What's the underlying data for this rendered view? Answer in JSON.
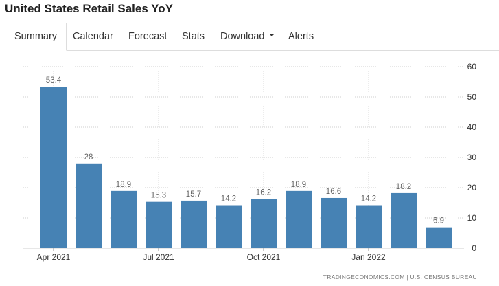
{
  "page": {
    "title": "United States Retail Sales YoY"
  },
  "tabs": [
    {
      "label": "Summary",
      "active": true
    },
    {
      "label": "Calendar"
    },
    {
      "label": "Forecast"
    },
    {
      "label": "Stats"
    },
    {
      "label": "Download",
      "has_dropdown": true
    },
    {
      "label": "Alerts"
    }
  ],
  "chart_data": {
    "type": "bar",
    "categories": [
      "Apr 2021",
      "May 2021",
      "Jun 2021",
      "Jul 2021",
      "Aug 2021",
      "Sep 2021",
      "Oct 2021",
      "Nov 2021",
      "Dec 2021",
      "Jan 2022",
      "Feb 2022",
      "Mar 2022"
    ],
    "values": [
      53.4,
      28,
      18.9,
      15.3,
      15.7,
      14.2,
      16.2,
      18.9,
      16.6,
      14.2,
      18.2,
      6.9
    ],
    "data_labels": [
      "53.4",
      "28",
      "18.9",
      "15.3",
      "15.7",
      "14.2",
      "16.2",
      "18.9",
      "16.6",
      "14.2",
      "18.2",
      "6.9"
    ],
    "x_tick_labels": [
      "Apr 2021",
      "Jul 2021",
      "Oct 2021",
      "Jan 2022"
    ],
    "x_tick_indices": [
      0,
      3,
      6,
      9
    ],
    "y_ticks": [
      0,
      10,
      20,
      30,
      40,
      50,
      60
    ],
    "ylim": [
      0,
      60
    ],
    "y_axis_side": "right",
    "grid": "dotted horizontal and vertical",
    "bar_color": "#4682b4",
    "label_color": "#666666",
    "source": "TRADINGECONOMICS.COM  |  U.S. CENSUS BUREAU"
  }
}
